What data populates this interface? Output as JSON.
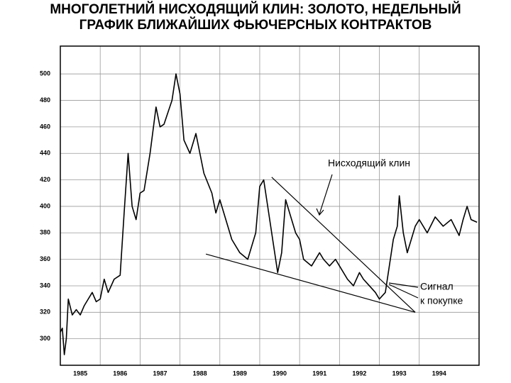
{
  "chart_data": {
    "type": "line",
    "title": [
      "МНОГОЛЕТНИЙ НИСХОДЯЩИЙ КЛИН: ЗОЛОТО, НЕДЕЛЬНЫЙ",
      "ГРАФИК БЛИЖАЙШИХ ФЬЮЧЕРСНЫХ КОНТРАКТОВ"
    ],
    "x": [
      1985.0,
      1985.05,
      1985.1,
      1985.15,
      1985.2,
      1985.3,
      1985.4,
      1985.5,
      1985.6,
      1985.7,
      1985.8,
      1985.9,
      1986.0,
      1986.1,
      1986.2,
      1986.35,
      1986.5,
      1986.6,
      1986.7,
      1986.8,
      1986.9,
      1987.0,
      1987.1,
      1987.25,
      1987.4,
      1987.5,
      1987.6,
      1987.8,
      1987.9,
      1988.0,
      1988.1,
      1988.25,
      1988.4,
      1988.5,
      1988.6,
      1988.8,
      1988.9,
      1989.0,
      1989.3,
      1989.5,
      1989.7,
      1989.9,
      1990.0,
      1990.1,
      1990.2,
      1990.35,
      1990.45,
      1990.55,
      1990.65,
      1990.8,
      1990.9,
      1991.0,
      1991.1,
      1991.3,
      1991.5,
      1991.6,
      1991.75,
      1991.9,
      1992.0,
      1992.2,
      1992.35,
      1992.5,
      1992.6,
      1992.75,
      1992.9,
      1993.0,
      1993.15,
      1993.25,
      1993.35,
      1993.45,
      1993.5,
      1993.6,
      1993.7,
      1993.8,
      1993.9,
      1994.0,
      1994.2,
      1994.4,
      1994.6,
      1994.8,
      1995.0,
      1995.1,
      1995.2,
      1995.3,
      1995.45
    ],
    "series": [
      {
        "color": "#000000",
        "values": [
          305,
          308,
          288,
          300,
          330,
          318,
          322,
          318,
          325,
          330,
          335,
          328,
          330,
          345,
          335,
          345,
          348,
          395,
          440,
          400,
          390,
          410,
          412,
          440,
          475,
          460,
          462,
          480,
          500,
          485,
          450,
          440,
          455,
          440,
          425,
          410,
          395,
          405,
          375,
          365,
          360,
          380,
          415,
          420,
          400,
          370,
          350,
          365,
          405,
          390,
          380,
          375,
          360,
          355,
          365,
          360,
          355,
          360,
          355,
          345,
          340,
          350,
          345,
          340,
          335,
          330,
          335,
          355,
          375,
          385,
          408,
          380,
          365,
          375,
          385,
          390,
          380,
          392,
          385,
          390,
          378,
          390,
          400,
          390,
          388
        ]
      }
    ],
    "trendlines": [
      {
        "x": [
          1990.3,
          1993.9
        ],
        "values": [
          422,
          320
        ]
      },
      {
        "x": [
          1988.65,
          1993.9
        ],
        "values": [
          364,
          320
        ]
      }
    ],
    "annotations": [
      "Нисходящий клин",
      "Сигнал",
      "к покупке"
    ],
    "xlim": [
      1985,
      1995.5
    ],
    "xticks": [
      {
        "value": 1985,
        "label": "1985"
      },
      {
        "value": 1986,
        "label": "1986"
      },
      {
        "value": 1987,
        "label": "1987"
      },
      {
        "value": 1988,
        "label": "1988"
      },
      {
        "value": 1989,
        "label": "1989"
      },
      {
        "value": 1990,
        "label": "1990"
      },
      {
        "value": 1991,
        "label": "1991"
      },
      {
        "value": 1992,
        "label": "1992"
      },
      {
        "value": 1993,
        "label": "1993"
      },
      {
        "value": 1994,
        "label": "1994"
      }
    ],
    "ylim": [
      280,
      521
    ],
    "yticks": [
      300,
      320,
      340,
      360,
      380,
      400,
      420,
      440,
      460,
      480,
      500
    ],
    "grid": true
  }
}
